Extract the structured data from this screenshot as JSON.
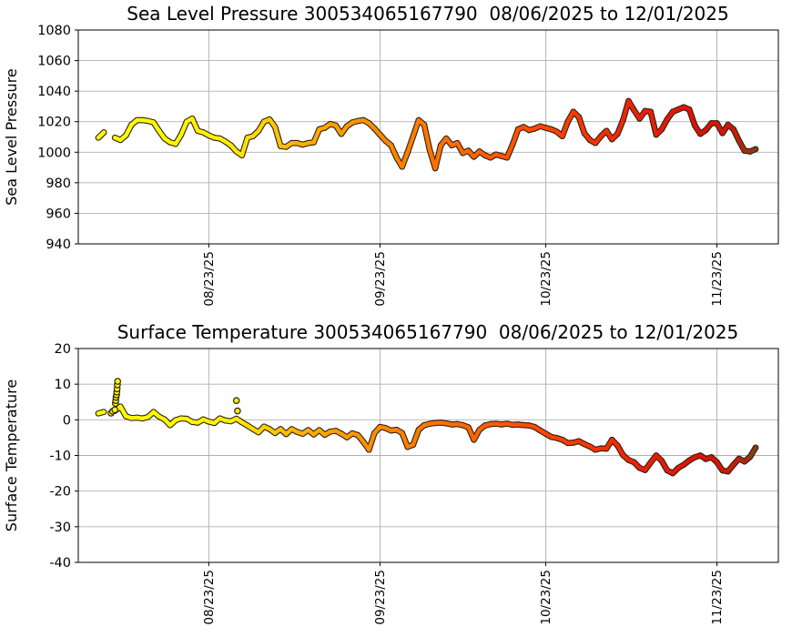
{
  "figure": {
    "background": "#ffffff",
    "grid_color": "#b0b0b0",
    "spine_color": "#000000",
    "marker_edge": "#2a2118",
    "marker_gradient": [
      {
        "t": 0.0,
        "color": "#ffff00"
      },
      {
        "t": 0.2,
        "color": "#ffef00"
      },
      {
        "t": 0.3,
        "color": "#ffb400"
      },
      {
        "t": 0.42,
        "color": "#ff8c00"
      },
      {
        "t": 0.55,
        "color": "#ff6900"
      },
      {
        "t": 0.68,
        "color": "#ff4500"
      },
      {
        "t": 0.8,
        "color": "#f02505"
      },
      {
        "t": 0.92,
        "color": "#dc1005"
      },
      {
        "t": 0.97,
        "color": "#c61e08"
      },
      {
        "t": 1.0,
        "color": "#7f4016"
      }
    ]
  },
  "chart_data": [
    {
      "type": "scatter",
      "title": "Sea Level Pressure 300534065167790  08/06/2025 to 12/01/2025",
      "ylabel": "Sea Level Pressure",
      "ylim": [
        940,
        1080
      ],
      "yticks": [
        1080,
        1060,
        1040,
        1020,
        1000,
        980,
        960,
        940
      ],
      "grid": true,
      "xtick_labels": [
        "08/23/25",
        "09/23/25",
        "10/23/25",
        "11/23/25"
      ],
      "xtick_days": [
        20,
        51,
        81,
        112
      ],
      "total_days": 120,
      "color_by": "time (yellow start to dark red end)",
      "values": [
        1009.5,
        1013,
        null,
        1009.5,
        1008,
        1011,
        1018,
        1021,
        1021,
        1020.5,
        1019.5,
        1014,
        1009,
        1006.5,
        1005.5,
        1011.5,
        1020,
        1022,
        1014,
        1013,
        1011,
        1009.5,
        1009,
        1007,
        1004.5,
        1000.5,
        998,
        1009.5,
        1010.5,
        1014,
        1020,
        1021.5,
        1016.5,
        1004,
        1003.5,
        1006,
        1006,
        1005,
        1006,
        1006.5,
        1015,
        1016,
        1018.5,
        1017.5,
        1012,
        1017,
        1019.5,
        1020.5,
        1021,
        1019,
        1015.5,
        1011.5,
        1007.5,
        1004.5,
        996.5,
        990.5,
        1000,
        1010.5,
        1021,
        1018,
        1001.5,
        989.5,
        1004.5,
        1009,
        1004.5,
        1006,
        999.5,
        1001,
        997,
        1000.5,
        998,
        996.5,
        998.5,
        997.5,
        996.5,
        1005,
        1015,
        1016.5,
        1014.5,
        1015.5,
        1017,
        1016,
        1015,
        1013.5,
        1010.5,
        1020,
        1026.5,
        1023,
        1012.5,
        1008,
        1006,
        1010.5,
        1014,
        1008.5,
        1012,
        1021,
        1033.5,
        1027.5,
        1022,
        1027,
        1026.5,
        1011.5,
        1015,
        1021.5,
        1026.5,
        1028,
        1029.5,
        1028,
        1017.5,
        1012,
        1014.5,
        1019,
        1019,
        1012.5,
        1018,
        1015,
        1007.5,
        1001,
        1000.5,
        1002
      ],
      "outliers": []
    },
    {
      "type": "scatter",
      "title": "Surface Temperature 300534065167790  08/06/2025 to 12/01/2025",
      "ylabel": "Surface Temperature",
      "ylim": [
        -40,
        20
      ],
      "yticks": [
        20,
        10,
        0,
        -10,
        -20,
        -30,
        -40
      ],
      "grid": true,
      "xtick_labels": [
        "08/23/25",
        "09/23/25",
        "10/23/25",
        "11/23/25"
      ],
      "xtick_days": [
        20,
        51,
        81,
        112
      ],
      "total_days": 120,
      "color_by": "time (yellow start to dark red end)",
      "values": [
        1.8,
        2.2,
        null,
        2.5,
        3.7,
        1.0,
        0.5,
        0.6,
        0.4,
        0.8,
        2.2,
        0.9,
        0.1,
        -1.5,
        -0.1,
        0.4,
        0.3,
        -0.6,
        -0.8,
        0.1,
        -0.5,
        -0.9,
        0.4,
        -0.2,
        -0.4,
        0.3,
        -0.7,
        -1.6,
        -2.6,
        -3.5,
        -1.9,
        -2.6,
        -3.7,
        -2.6,
        -4.0,
        -2.6,
        -3.4,
        -3.9,
        -2.9,
        -4.1,
        -2.9,
        -4.2,
        -3.3,
        -3.1,
        -3.9,
        -4.9,
        -3.8,
        -4.3,
        -6.2,
        -8.4,
        -3.7,
        -2.0,
        -2.3,
        -3.0,
        -2.8,
        -3.7,
        -7.6,
        -7.0,
        -2.8,
        -1.5,
        -1.1,
        -0.9,
        -0.8,
        -1.0,
        -1.3,
        -1.2,
        -1.5,
        -2.1,
        -5.6,
        -2.8,
        -1.6,
        -1.2,
        -1.1,
        -1.3,
        -1.1,
        -1.4,
        -1.3,
        -1.5,
        -1.6,
        -2.0,
        -3.0,
        -3.9,
        -4.8,
        -5.1,
        -5.6,
        -6.5,
        -6.4,
        -6.0,
        -6.8,
        -7.5,
        -8.4,
        -8.0,
        -8.1,
        -5.6,
        -7.2,
        -9.9,
        -11.3,
        -11.9,
        -13.5,
        -14.1,
        -12.0,
        -10.0,
        -11.5,
        -14.2,
        -15.0,
        -13.5,
        -12.6,
        -11.4,
        -10.5,
        -10.0,
        -11.0,
        -10.5,
        -11.9,
        -14.2,
        -14.5,
        -12.6,
        -10.9,
        -11.7,
        -10.4,
        -7.8
      ],
      "outliers": [
        [
          2.3,
          1.9
        ],
        [
          2.6,
          2.4
        ],
        [
          3.0,
          2.8
        ],
        [
          3.1,
          4.6
        ],
        [
          3.15,
          5.4
        ],
        [
          3.2,
          6.3
        ],
        [
          3.3,
          7.0
        ],
        [
          3.35,
          7.8
        ],
        [
          3.4,
          8.7
        ],
        [
          3.45,
          9.8
        ],
        [
          3.5,
          10.8
        ],
        [
          25.0,
          5.4
        ],
        [
          25.2,
          2.5
        ]
      ]
    }
  ]
}
